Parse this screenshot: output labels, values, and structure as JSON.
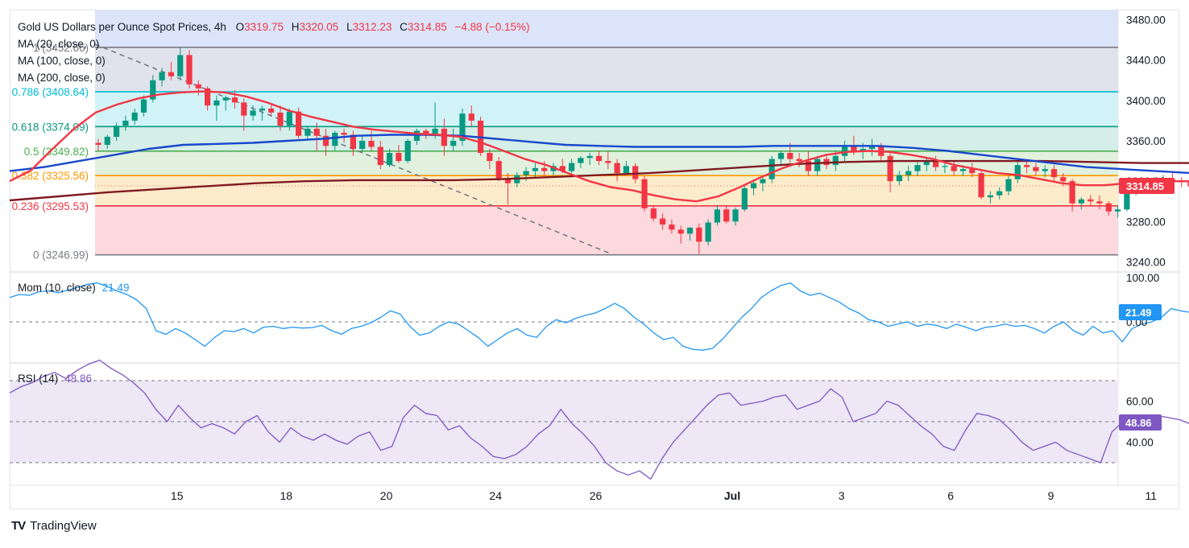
{
  "header": {
    "symbol": "Gold US Dollars per Ounce Spot Prices, 4h",
    "open_label": "O",
    "open": "3319.75",
    "high_label": "H",
    "high": "3320.05",
    "low_label": "L",
    "low": "3312.23",
    "close_label": "C",
    "close": "3314.85",
    "change": "−4.88 (−0.15%)"
  },
  "indicators": {
    "ma20": "MA (20, close, 0)",
    "ma100": "MA (100, close, 0)",
    "ma200": "MA (200, close, 0)",
    "mom_label": "Mom (10, close)",
    "mom_value": "21.49",
    "rsi_label": "RSI (14)",
    "rsi_value": "48.86"
  },
  "price_badge": "3314.85",
  "fib_levels": [
    {
      "ratio": "1",
      "label": "1 (3452.66)",
      "price": 3452.66,
      "line": "#787b86",
      "fill": "#e0e3eb",
      "text": "#787b86"
    },
    {
      "ratio": "0.786",
      "label": "0.786 (3408.64)",
      "price": 3408.64,
      "line": "#00bcd4",
      "fill": "#d1f3f7",
      "text": "#00bcd4"
    },
    {
      "ratio": "0.618",
      "label": "0.618 (3374.09)",
      "price": 3374.09,
      "line": "#089981",
      "fill": "#d5eee7",
      "text": "#089981"
    },
    {
      "ratio": "0.5",
      "label": "0.5 (3349.82)",
      "price": 3349.82,
      "line": "#4caf50",
      "fill": "#e1f1de",
      "text": "#4caf50"
    },
    {
      "ratio": "0.382",
      "label": "0.382 (3325.56)",
      "price": 3325.56,
      "line": "#ff9800",
      "fill": "#fdeccb",
      "text": "#ff9800"
    },
    {
      "ratio": "0.236",
      "label": "0.236 (3295.53)",
      "price": 3295.53,
      "line": "#f23645",
      "fill": "#fbd9dc",
      "text": "#f23645"
    },
    {
      "ratio": "0",
      "label": "0 (3246.99)",
      "price": 3246.99,
      "line": "#787b86",
      "fill": null,
      "text": "#787b86"
    }
  ],
  "price_axis_ticks": [
    "3480.00",
    "3440.00",
    "3400.00",
    "3360.00",
    "3320.00",
    "3280.00",
    "3240.00"
  ],
  "mom_axis_ticks": [
    "100.00",
    "0.00"
  ],
  "rsi_axis_ticks": [
    "60.00",
    "40.00"
  ],
  "x_ticks": [
    {
      "label": "15",
      "bar": 9
    },
    {
      "label": "18",
      "bar": 21
    },
    {
      "label": "20",
      "bar": 32
    },
    {
      "label": "24",
      "bar": 44
    },
    {
      "label": "26",
      "bar": 55
    },
    {
      "label": "Jul",
      "bar": 70
    },
    {
      "label": "3",
      "bar": 82
    },
    {
      "label": "6",
      "bar": 94
    },
    {
      "label": "9",
      "bar": 105
    },
    {
      "label": "11",
      "bar": 116
    }
  ],
  "colors": {
    "up": "#089981",
    "down": "#f23645",
    "ma20": "#f23645",
    "ma100": "#1848cc",
    "ma200": "#801922",
    "mom": "#2196f3",
    "rsi": "#7e57c2",
    "rsi_band": "#ede7f6",
    "mom_badge": "#2196f3",
    "rsi_badge": "#7e57c2",
    "price_badge": "#f23645",
    "header_up": "#089981",
    "header_down": "#f23645"
  },
  "footer": {
    "brand": "TradingView",
    "logo_mark": "TV"
  },
  "chart_data": {
    "type": "candlestick",
    "title": "Gold US Dollars per Ounce Spot Prices, 4h",
    "price_range": [
      3230,
      3490
    ],
    "bars": [
      [
        3358,
        3362,
        3350,
        3356
      ],
      [
        3356,
        3366,
        3352,
        3364
      ],
      [
        3364,
        3378,
        3360,
        3375
      ],
      [
        3375,
        3385,
        3370,
        3380
      ],
      [
        3380,
        3392,
        3376,
        3388
      ],
      [
        3388,
        3405,
        3384,
        3401
      ],
      [
        3401,
        3425,
        3398,
        3420
      ],
      [
        3420,
        3432,
        3414,
        3428
      ],
      [
        3428,
        3438,
        3420,
        3424
      ],
      [
        3424,
        3453,
        3420,
        3445
      ],
      [
        3445,
        3450,
        3412,
        3416
      ],
      [
        3416,
        3420,
        3405,
        3412
      ],
      [
        3412,
        3414,
        3390,
        3395
      ],
      [
        3395,
        3405,
        3380,
        3400
      ],
      [
        3400,
        3405,
        3390,
        3403
      ],
      [
        3403,
        3410,
        3392,
        3398
      ],
      [
        3398,
        3402,
        3370,
        3385
      ],
      [
        3385,
        3395,
        3380,
        3390
      ],
      [
        3390,
        3395,
        3380,
        3392
      ],
      [
        3392,
        3396,
        3384,
        3388
      ],
      [
        3388,
        3395,
        3370,
        3375
      ],
      [
        3375,
        3392,
        3370,
        3389
      ],
      [
        3389,
        3393,
        3362,
        3365
      ],
      [
        3365,
        3375,
        3360,
        3372
      ],
      [
        3372,
        3378,
        3350,
        3365
      ],
      [
        3365,
        3372,
        3345,
        3355
      ],
      [
        3355,
        3370,
        3350,
        3368
      ],
      [
        3368,
        3372,
        3358,
        3366
      ],
      [
        3366,
        3370,
        3345,
        3352
      ],
      [
        3352,
        3365,
        3348,
        3360
      ],
      [
        3360,
        3370,
        3350,
        3354
      ],
      [
        3354,
        3360,
        3332,
        3336
      ],
      [
        3336,
        3352,
        3334,
        3348
      ],
      [
        3348,
        3356,
        3338,
        3340
      ],
      [
        3340,
        3362,
        3338,
        3360
      ],
      [
        3360,
        3372,
        3356,
        3370
      ],
      [
        3370,
        3372,
        3362,
        3367
      ],
      [
        3367,
        3398,
        3362,
        3372
      ],
      [
        3372,
        3382,
        3345,
        3355
      ],
      [
        3355,
        3372,
        3350,
        3360
      ],
      [
        3360,
        3392,
        3355,
        3387
      ],
      [
        3387,
        3395,
        3374,
        3380
      ],
      [
        3380,
        3384,
        3345,
        3348
      ],
      [
        3348,
        3352,
        3332,
        3340
      ],
      [
        3340,
        3344,
        3320,
        3323
      ],
      [
        3323,
        3328,
        3297,
        3318
      ],
      [
        3318,
        3329,
        3314,
        3326
      ],
      [
        3326,
        3334,
        3320,
        3330
      ],
      [
        3330,
        3338,
        3324,
        3333
      ],
      [
        3333,
        3340,
        3325,
        3330
      ],
      [
        3330,
        3338,
        3326,
        3335
      ],
      [
        3335,
        3342,
        3328,
        3330
      ],
      [
        3330,
        3342,
        3328,
        3338
      ],
      [
        3338,
        3345,
        3333,
        3343
      ],
      [
        3343,
        3348,
        3336,
        3345
      ],
      [
        3345,
        3350,
        3336,
        3340
      ],
      [
        3340,
        3350,
        3332,
        3338
      ],
      [
        3338,
        3342,
        3320,
        3328
      ],
      [
        3328,
        3340,
        3326,
        3335
      ],
      [
        3335,
        3338,
        3318,
        3322
      ],
      [
        3322,
        3325,
        3290,
        3293
      ],
      [
        3293,
        3296,
        3280,
        3283
      ],
      [
        3283,
        3288,
        3272,
        3277
      ],
      [
        3277,
        3282,
        3268,
        3272
      ],
      [
        3272,
        3276,
        3258,
        3268
      ],
      [
        3268,
        3274,
        3261,
        3274
      ],
      [
        3274,
        3278,
        3248,
        3260
      ],
      [
        3260,
        3282,
        3256,
        3279
      ],
      [
        3279,
        3296,
        3276,
        3292
      ],
      [
        3292,
        3296,
        3278,
        3280
      ],
      [
        3280,
        3294,
        3276,
        3292
      ],
      [
        3292,
        3316,
        3290,
        3313
      ],
      [
        3313,
        3322,
        3306,
        3318
      ],
      [
        3318,
        3325,
        3310,
        3322
      ],
      [
        3322,
        3345,
        3318,
        3342
      ],
      [
        3342,
        3350,
        3335,
        3348
      ],
      [
        3348,
        3358,
        3338,
        3342
      ],
      [
        3342,
        3348,
        3334,
        3340
      ],
      [
        3340,
        3350,
        3325,
        3330
      ],
      [
        3330,
        3345,
        3325,
        3342
      ],
      [
        3342,
        3346,
        3332,
        3336
      ],
      [
        3336,
        3350,
        3330,
        3345
      ],
      [
        3345,
        3360,
        3340,
        3355
      ],
      [
        3355,
        3365,
        3346,
        3350
      ],
      [
        3350,
        3358,
        3342,
        3352
      ],
      [
        3352,
        3362,
        3345,
        3355
      ],
      [
        3355,
        3358,
        3340,
        3345
      ],
      [
        3345,
        3348,
        3309,
        3320
      ],
      [
        3320,
        3330,
        3316,
        3326
      ],
      [
        3326,
        3335,
        3320,
        3330
      ],
      [
        3330,
        3340,
        3325,
        3336
      ],
      [
        3336,
        3344,
        3330,
        3340
      ],
      [
        3340,
        3345,
        3330,
        3334
      ],
      [
        3334,
        3340,
        3328,
        3335
      ],
      [
        3335,
        3340,
        3326,
        3330
      ],
      [
        3330,
        3336,
        3325,
        3332
      ],
      [
        3332,
        3338,
        3324,
        3328
      ],
      [
        3328,
        3330,
        3302,
        3304
      ],
      [
        3304,
        3310,
        3298,
        3306
      ],
      [
        3306,
        3314,
        3302,
        3310
      ],
      [
        3310,
        3325,
        3306,
        3322
      ],
      [
        3322,
        3340,
        3318,
        3336
      ],
      [
        3336,
        3340,
        3328,
        3334
      ],
      [
        3334,
        3338,
        3326,
        3330
      ],
      [
        3330,
        3336,
        3324,
        3332
      ],
      [
        3332,
        3336,
        3320,
        3324
      ],
      [
        3324,
        3328,
        3315,
        3320
      ],
      [
        3320,
        3322,
        3290,
        3298
      ],
      [
        3298,
        3304,
        3292,
        3302
      ],
      [
        3302,
        3306,
        3296,
        3300
      ],
      [
        3300,
        3306,
        3292,
        3298
      ],
      [
        3298,
        3300,
        3286,
        3290
      ],
      [
        3290,
        3296,
        3284,
        3292
      ],
      [
        3292,
        3318,
        3290,
        3314
      ],
      [
        3314,
        3320,
        3306,
        3316
      ],
      [
        3316,
        3322,
        3310,
        3318
      ],
      [
        3318,
        3324,
        3312,
        3320
      ],
      [
        3320,
        3326,
        3314,
        3322
      ],
      [
        3322,
        3328,
        3312,
        3321
      ],
      [
        3321,
        3324,
        3314,
        3319
      ],
      [
        3319.75,
        3320.05,
        3312.23,
        3314.85
      ]
    ],
    "ma20": [
      3320,
      3331,
      3352,
      3372,
      3388,
      3396,
      3402,
      3406,
      3408,
      3409,
      3408,
      3404,
      3398,
      3390,
      3384,
      3379,
      3374,
      3371,
      3369,
      3367,
      3366,
      3364,
      3358,
      3350,
      3342,
      3336,
      3328,
      3320,
      3314,
      3311,
      3306,
      3302,
      3300,
      3305,
      3314,
      3324,
      3333,
      3340,
      3346,
      3349,
      3350,
      3349,
      3346,
      3342,
      3336,
      3332,
      3328,
      3326,
      3322,
      3318,
      3316,
      3316,
      3318,
      3320,
      3320,
      3320
    ],
    "ma100": [
      3330,
      3334,
      3340,
      3346,
      3352,
      3356,
      3357,
      3358,
      3360,
      3362,
      3365,
      3366,
      3366,
      3365,
      3362,
      3359,
      3356,
      3355,
      3354,
      3354,
      3354,
      3354,
      3355,
      3355,
      3355,
      3355,
      3353,
      3350,
      3346,
      3342,
      3338,
      3334,
      3332,
      3330,
      3328
    ],
    "ma200": [
      3301,
      3305,
      3309,
      3312,
      3315,
      3318,
      3320,
      3321,
      3321,
      3321,
      3322,
      3324,
      3326,
      3328,
      3331,
      3334,
      3337,
      3339,
      3340,
      3340,
      3340,
      3340,
      3339,
      3338,
      3338
    ],
    "momentum": [
      55,
      62,
      60,
      68,
      70,
      66,
      72,
      78,
      85,
      88,
      80,
      70,
      62,
      50,
      30,
      -20,
      -28,
      -15,
      -25,
      -40,
      -55,
      -35,
      -20,
      -22,
      -15,
      -25,
      -12,
      -10,
      -15,
      -12,
      -14,
      -13,
      -8,
      -20,
      -28,
      -15,
      -10,
      -2,
      10,
      25,
      18,
      -10,
      -30,
      -25,
      -10,
      0,
      -5,
      -20,
      -35,
      -55,
      -40,
      -25,
      -15,
      -30,
      -35,
      -10,
      5,
      -2,
      8,
      15,
      20,
      30,
      42,
      30,
      10,
      -5,
      -25,
      -40,
      -35,
      -55,
      -62,
      -64,
      -60,
      -40,
      -15,
      10,
      30,
      55,
      70,
      82,
      88,
      70,
      60,
      65,
      55,
      45,
      30,
      20,
      5,
      0,
      -10,
      -5,
      0,
      -10,
      -5,
      -8,
      -15,
      -5,
      -12,
      -20,
      -12,
      -10,
      -5,
      -10,
      -8,
      -15,
      -25,
      -10,
      0,
      -20,
      -30,
      -10,
      -25,
      -20,
      -45,
      -15,
      -5,
      0,
      10,
      30,
      25,
      21.49
    ],
    "rsi": [
      64,
      67,
      69,
      72,
      74,
      71,
      75,
      78,
      80,
      76,
      73,
      69,
      64,
      56,
      50,
      58,
      52,
      47,
      49,
      47,
      44,
      50,
      53,
      45,
      40,
      47,
      43,
      41,
      44,
      41,
      39,
      43,
      45,
      36,
      38,
      52,
      58,
      54,
      53,
      46,
      48,
      42,
      38,
      33,
      32,
      34,
      38,
      44,
      48,
      56,
      49,
      44,
      38,
      30,
      26,
      24,
      26,
      22,
      32,
      40,
      46,
      52,
      58,
      63,
      64,
      58,
      59,
      60,
      62,
      63,
      56,
      58,
      60,
      66,
      62,
      50,
      52,
      54,
      60,
      58,
      53,
      48,
      44,
      38,
      36,
      46,
      54,
      53,
      51,
      46,
      40,
      36,
      38,
      40,
      36,
      34,
      32,
      30,
      45,
      50,
      52,
      49.5,
      53,
      52,
      51,
      48.86
    ],
    "rsi_levels": [
      70,
      50,
      30
    ],
    "current_price": 3314.85
  }
}
